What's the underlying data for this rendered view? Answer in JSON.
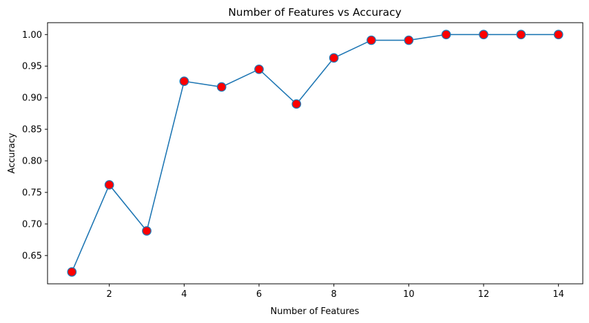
{
  "chart_data": {
    "type": "line",
    "title": "Number of Features vs Accuracy",
    "xlabel": "Number of Features",
    "ylabel": "Accuracy",
    "x": [
      1,
      2,
      3,
      4,
      5,
      6,
      7,
      8,
      9,
      10,
      11,
      12,
      13,
      14
    ],
    "series": [
      {
        "values": [
          0.624,
          0.762,
          0.689,
          0.926,
          0.917,
          0.945,
          0.89,
          0.963,
          0.991,
          0.991,
          1.0,
          1.0,
          1.0,
          1.0
        ]
      }
    ],
    "xlim": [
      0.35,
      14.65
    ],
    "ylim": [
      0.6052,
      1.0188
    ],
    "xticks": [
      2,
      4,
      6,
      8,
      10,
      12,
      14
    ],
    "xtick_labels": [
      "2",
      "4",
      "6",
      "8",
      "10",
      "12",
      "14"
    ],
    "yticks": [
      0.65,
      0.7,
      0.75,
      0.8,
      0.85,
      0.9,
      0.95,
      1.0
    ],
    "ytick_labels": [
      "0.65",
      "0.70",
      "0.75",
      "0.80",
      "0.85",
      "0.90",
      "0.95",
      "1.00"
    ],
    "grid": false,
    "line_color": "#1f77b4",
    "marker_face_color": "#ff0000",
    "marker_edge_color": "#1f77b4"
  }
}
